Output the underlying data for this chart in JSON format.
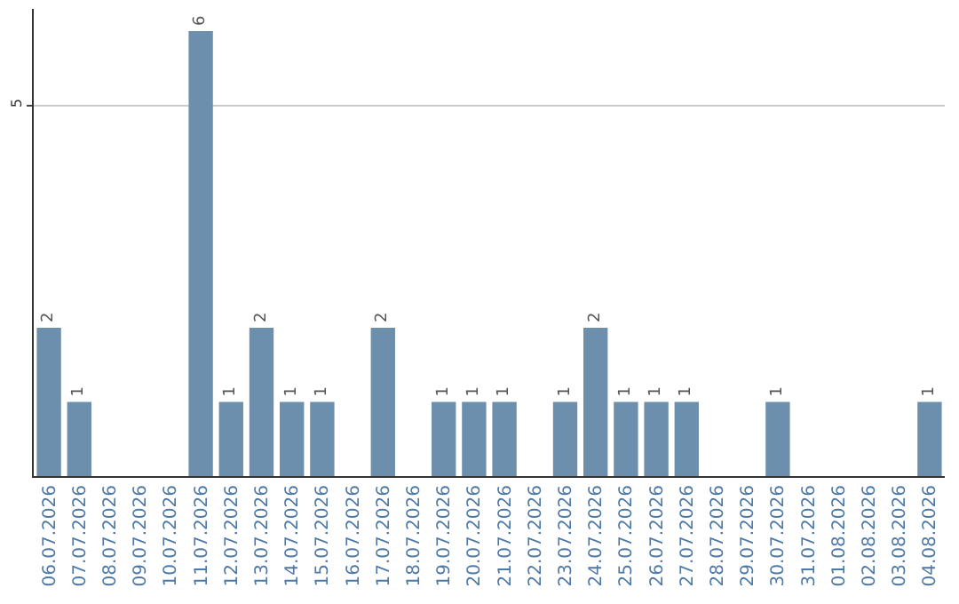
{
  "chart_data": {
    "type": "bar",
    "categories": [
      "06.07.2026",
      "07.07.2026",
      "08.07.2026",
      "09.07.2026",
      "10.07.2026",
      "11.07.2026",
      "12.07.2026",
      "13.07.2026",
      "14.07.2026",
      "15.07.2026",
      "16.07.2026",
      "17.07.2026",
      "18.07.2026",
      "19.07.2026",
      "20.07.2026",
      "21.07.2026",
      "22.07.2026",
      "23.07.2026",
      "24.07.2026",
      "25.07.2026",
      "26.07.2026",
      "27.07.2026",
      "28.07.2026",
      "29.07.2026",
      "30.07.2026",
      "31.07.2026",
      "01.08.2026",
      "02.08.2026",
      "03.08.2026",
      "04.08.2026"
    ],
    "values": [
      2,
      1,
      0,
      0,
      0,
      6,
      1,
      2,
      1,
      1,
      0,
      2,
      0,
      1,
      1,
      1,
      0,
      1,
      2,
      1,
      1,
      1,
      0,
      0,
      1,
      0,
      0,
      0,
      0,
      1
    ],
    "value_labels": [
      "2",
      "1",
      null,
      null,
      null,
      "6",
      "1",
      "2",
      "1",
      "1",
      null,
      "2",
      null,
      "1",
      "1",
      "1",
      null,
      "1",
      "2",
      "1",
      "1",
      "1",
      null,
      null,
      "1",
      null,
      null,
      null,
      null,
      "1"
    ],
    "color": "#6d8fae",
    "ylim": [
      0,
      6.3
    ],
    "yticks": [
      5
    ],
    "grid": "y",
    "legend": false
  }
}
